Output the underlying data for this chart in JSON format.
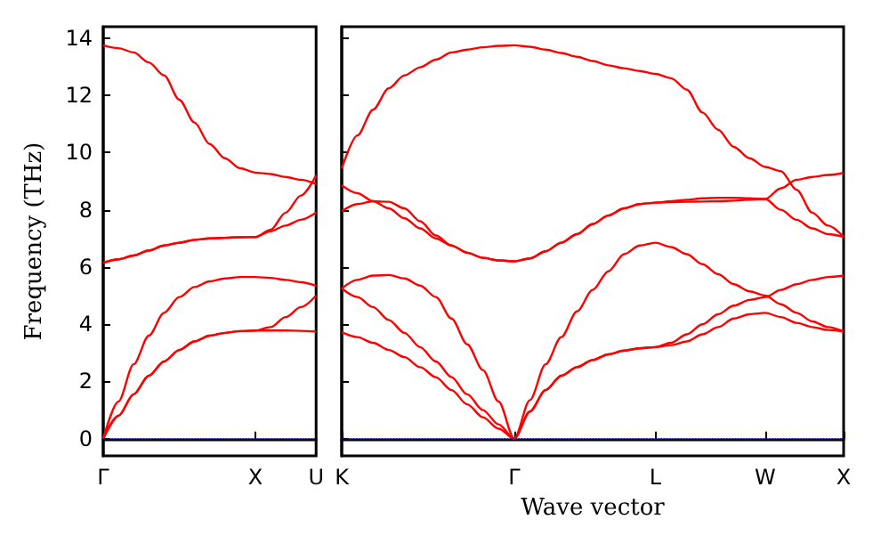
{
  "chart_data": [
    {
      "type": "line",
      "ylabel": "Frequency (THz)",
      "categories": [
        "Γ",
        null,
        null,
        null,
        null,
        null,
        null,
        null,
        null,
        null,
        "X",
        null,
        null,
        null,
        "U"
      ],
      "ylim": [
        -0.6,
        14.4
      ],
      "yticks": [
        0,
        2,
        4,
        6,
        8,
        10,
        12,
        14
      ],
      "marker": "none",
      "line_style": "solid",
      "ref_lines": [
        {
          "axis": "y",
          "value": 0,
          "color": "#0000ff",
          "line_style": "dotted"
        }
      ],
      "series": [
        {
          "color": "#ff0000",
          "values": [
            13.75,
            13.65,
            13.5,
            13.15,
            12.7,
            11.85,
            11.05,
            10.3,
            9.8,
            9.45,
            9.3,
            9.25,
            9.15,
            9.05,
            8.9
          ]
        },
        {
          "color": "#ff0000",
          "values": [
            6.15,
            6.27,
            6.4,
            6.58,
            6.75,
            6.85,
            6.95,
            7.0,
            7.02,
            7.04,
            7.05,
            7.3,
            7.9,
            8.5,
            9.2
          ]
        },
        {
          "color": "#ff0000",
          "values": [
            6.15,
            6.27,
            6.4,
            6.58,
            6.75,
            6.85,
            6.95,
            7.0,
            7.02,
            7.04,
            7.05,
            7.25,
            7.45,
            7.65,
            7.9
          ]
        },
        {
          "color": "#ff0000",
          "values": [
            0,
            1.3,
            2.6,
            3.6,
            4.4,
            4.95,
            5.3,
            5.5,
            5.6,
            5.65,
            5.65,
            5.62,
            5.55,
            5.47,
            5.35
          ]
        },
        {
          "color": "#ff0000",
          "values": [
            0,
            0.8,
            1.55,
            2.2,
            2.7,
            3.1,
            3.4,
            3.6,
            3.7,
            3.76,
            3.78,
            3.9,
            4.25,
            4.6,
            5.0
          ]
        },
        {
          "color": "#ff0000",
          "values": [
            0,
            0.8,
            1.55,
            2.2,
            2.7,
            3.1,
            3.4,
            3.6,
            3.7,
            3.76,
            3.78,
            3.78,
            3.78,
            3.77,
            3.75
          ]
        }
      ]
    },
    {
      "type": "line",
      "xlabel": "Wave vector",
      "tick_labels": "x",
      "categories": [
        "K",
        null,
        null,
        null,
        null,
        null,
        null,
        null,
        null,
        null,
        null,
        "Γ",
        null,
        null,
        null,
        null,
        null,
        null,
        null,
        null,
        "L",
        null,
        null,
        null,
        null,
        null,
        null,
        "W",
        null,
        null,
        null,
        null,
        "X"
      ],
      "ylim": [
        -0.6,
        14.4
      ],
      "yticks": [
        0,
        2,
        4,
        6,
        8,
        10,
        12,
        14
      ],
      "marker": "none",
      "line_style": "solid",
      "ref_lines": [
        {
          "axis": "y",
          "value": 0,
          "color": "#0000ff",
          "line_style": "dotted"
        }
      ],
      "series": [
        {
          "color": "#ff0000",
          "values": [
            9.44,
            10.6,
            11.5,
            12.25,
            12.7,
            12.98,
            13.25,
            13.5,
            13.6,
            13.68,
            13.73,
            13.75,
            13.7,
            13.6,
            13.48,
            13.35,
            13.2,
            13.05,
            12.95,
            12.85,
            12.75,
            12.6,
            12.2,
            11.4,
            10.8,
            10.2,
            9.8,
            9.5,
            9.35,
            8.7,
            7.9,
            7.45,
            7.05
          ]
        },
        {
          "color": "#ff0000",
          "values": [
            8.85,
            8.58,
            8.3,
            8.05,
            7.7,
            7.35,
            7.0,
            6.75,
            6.5,
            6.32,
            6.23,
            6.2,
            6.3,
            6.55,
            6.85,
            7.15,
            7.5,
            7.8,
            8.05,
            8.2,
            8.25,
            8.3,
            8.35,
            8.4,
            8.42,
            8.42,
            8.4,
            8.38,
            8.75,
            9.05,
            9.15,
            9.22,
            9.29
          ]
        },
        {
          "color": "#ff0000",
          "values": [
            7.95,
            8.2,
            8.3,
            8.28,
            8.05,
            7.6,
            7.1,
            6.75,
            6.5,
            6.32,
            6.23,
            6.2,
            6.3,
            6.55,
            6.85,
            7.15,
            7.5,
            7.8,
            8.05,
            8.2,
            8.25,
            8.27,
            8.28,
            8.29,
            8.3,
            8.32,
            8.35,
            8.38,
            8.0,
            7.65,
            7.35,
            7.15,
            7.05
          ]
        },
        {
          "color": "#ff0000",
          "values": [
            5.25,
            5.55,
            5.7,
            5.72,
            5.6,
            5.35,
            4.95,
            4.2,
            3.3,
            2.4,
            1.3,
            0,
            1.35,
            2.6,
            3.55,
            4.45,
            5.2,
            5.85,
            6.45,
            6.75,
            6.85,
            6.7,
            6.45,
            6.1,
            5.75,
            5.4,
            5.15,
            5.0,
            4.7,
            4.4,
            4.1,
            3.9,
            3.75
          ]
        },
        {
          "color": "#ff0000",
          "values": [
            5.25,
            4.95,
            4.6,
            4.15,
            3.7,
            3.2,
            2.7,
            2.15,
            1.55,
            1.0,
            0.5,
            0,
            0.95,
            1.7,
            2.2,
            2.5,
            2.75,
            2.95,
            3.08,
            3.16,
            3.2,
            3.35,
            3.65,
            4.0,
            4.35,
            4.65,
            4.85,
            4.95,
            5.2,
            5.4,
            5.55,
            5.65,
            5.7
          ]
        },
        {
          "color": "#ff0000",
          "values": [
            3.72,
            3.55,
            3.35,
            3.1,
            2.85,
            2.5,
            2.15,
            1.7,
            1.2,
            0.75,
            0.35,
            0,
            0.95,
            1.7,
            2.2,
            2.5,
            2.75,
            2.95,
            3.08,
            3.16,
            3.2,
            3.27,
            3.4,
            3.65,
            3.9,
            4.2,
            4.35,
            4.4,
            4.25,
            4.05,
            3.9,
            3.8,
            3.75
          ]
        }
      ]
    }
  ]
}
